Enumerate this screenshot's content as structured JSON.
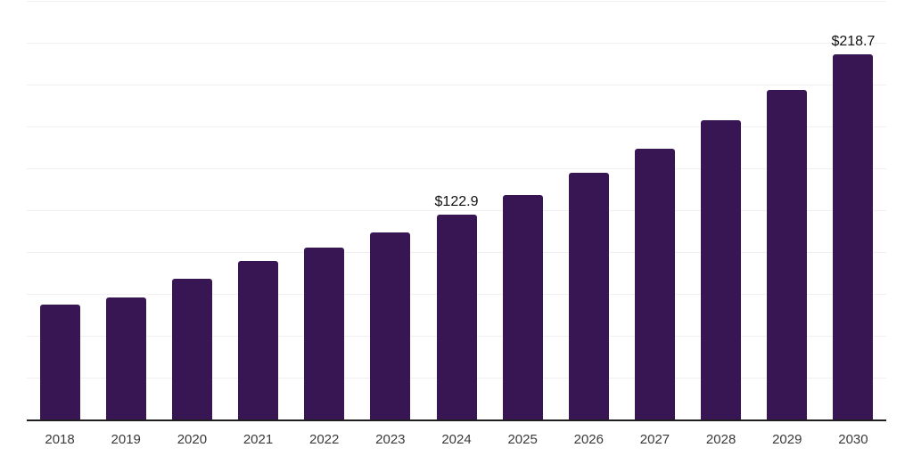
{
  "chart_data": {
    "type": "bar",
    "title": "",
    "xlabel": "",
    "ylabel": "",
    "categories": [
      "2018",
      "2019",
      "2020",
      "2021",
      "2022",
      "2023",
      "2024",
      "2025",
      "2026",
      "2027",
      "2028",
      "2029",
      "2030"
    ],
    "values": [
      69.3,
      73.6,
      84.6,
      95.2,
      103.2,
      112.4,
      122.9,
      134.4,
      147.7,
      162.5,
      179.4,
      197.2,
      218.7
    ],
    "data_labels": [
      "",
      "",
      "",
      "",
      "",
      "",
      "$122.9",
      "",
      "",
      "",
      "",
      "",
      "$218.7"
    ],
    "ylim": [
      0,
      250
    ],
    "grid_step": 25,
    "grid": "horizontal-only",
    "legend": "none",
    "bar_color": "#371653",
    "grid_color": "#f0f0f0",
    "axis_line_color": "#1f1f1f",
    "tick_label_color": "#3a3a3a",
    "data_label_color": "#111111",
    "background_color": "#ffffff"
  }
}
